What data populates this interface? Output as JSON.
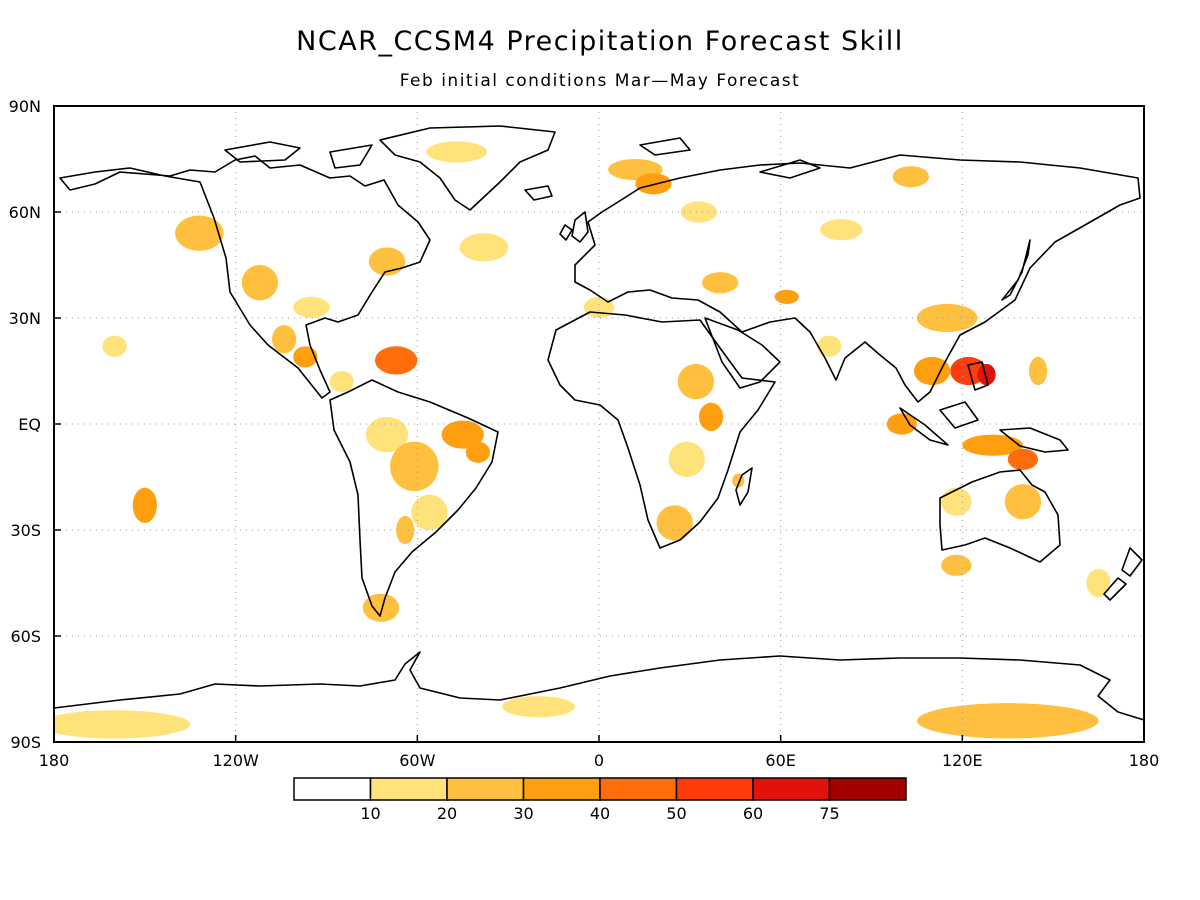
{
  "title": "NCAR_CCSM4 Precipitation Forecast Skill",
  "subtitle": "Feb initial conditions  Mar—May Forecast",
  "map": {
    "projection": "equirectangular",
    "lon_range": [
      -180,
      180
    ],
    "lat_range": [
      -90,
      90
    ],
    "grid": "dotted",
    "y_ticks": [
      {
        "value": 90,
        "label": "90N"
      },
      {
        "value": 60,
        "label": "60N"
      },
      {
        "value": 30,
        "label": "30N"
      },
      {
        "value": 0,
        "label": "EQ"
      },
      {
        "value": -30,
        "label": "30S"
      },
      {
        "value": -60,
        "label": "60S"
      },
      {
        "value": -90,
        "label": "90S"
      }
    ],
    "x_ticks": [
      {
        "value": -180,
        "label": "180"
      },
      {
        "value": -120,
        "label": "120W"
      },
      {
        "value": -60,
        "label": "60W"
      },
      {
        "value": 0,
        "label": "0"
      },
      {
        "value": 60,
        "label": "60E"
      },
      {
        "value": 120,
        "label": "120E"
      },
      {
        "value": 180,
        "label": "180"
      }
    ]
  },
  "colorbar": {
    "colors": [
      "#ffffff",
      "#ffe37a",
      "#ffc040",
      "#ff9f0f",
      "#ff6e0a",
      "#ff3c0a",
      "#e0120a",
      "#a30000"
    ],
    "labels": [
      "10",
      "20",
      "30",
      "40",
      "50",
      "60",
      "75"
    ]
  },
  "chart_data": {
    "type": "heatmap",
    "title": "NCAR_CCSM4 Precipitation Forecast Skill",
    "subtitle": "Feb initial conditions  Mar—May Forecast",
    "levels": [
      10,
      20,
      30,
      40,
      50,
      60,
      75
    ],
    "regions": [
      {
        "lon": -38,
        "lat": 50,
        "rx": 8,
        "ry": 4,
        "level": 1
      },
      {
        "lon": -47,
        "lat": 77,
        "rx": 10,
        "ry": 3,
        "level": 1
      },
      {
        "lon": -132,
        "lat": 54,
        "rx": 8,
        "ry": 5,
        "level": 2
      },
      {
        "lon": -112,
        "lat": 40,
        "rx": 6,
        "ry": 5,
        "level": 2
      },
      {
        "lon": -95,
        "lat": 33,
        "rx": 6,
        "ry": 3,
        "level": 1
      },
      {
        "lon": -104,
        "lat": 24,
        "rx": 4,
        "ry": 4,
        "level": 2
      },
      {
        "lon": -97,
        "lat": 19,
        "rx": 4,
        "ry": 3,
        "level": 3
      },
      {
        "lon": -85,
        "lat": 12,
        "rx": 4,
        "ry": 3,
        "level": 1
      },
      {
        "lon": -70,
        "lat": 46,
        "rx": 6,
        "ry": 4,
        "level": 2
      },
      {
        "lon": -67,
        "lat": 18,
        "rx": 7,
        "ry": 4,
        "level": 4
      },
      {
        "lon": -160,
        "lat": 22,
        "rx": 4,
        "ry": 3,
        "level": 1
      },
      {
        "lon": -150,
        "lat": -23,
        "rx": 4,
        "ry": 5,
        "level": 3
      },
      {
        "lon": -70,
        "lat": -3,
        "rx": 7,
        "ry": 5,
        "level": 1
      },
      {
        "lon": -61,
        "lat": -12,
        "rx": 8,
        "ry": 7,
        "level": 2
      },
      {
        "lon": -45,
        "lat": -3,
        "rx": 7,
        "ry": 4,
        "level": 3
      },
      {
        "lon": -40,
        "lat": -8,
        "rx": 4,
        "ry": 3,
        "level": 3
      },
      {
        "lon": -56,
        "lat": -25,
        "rx": 6,
        "ry": 5,
        "level": 1
      },
      {
        "lon": -64,
        "lat": -30,
        "rx": 3,
        "ry": 4,
        "level": 2
      },
      {
        "lon": -72,
        "lat": -52,
        "rx": 6,
        "ry": 4,
        "level": 2
      },
      {
        "lon": 12,
        "lat": 72,
        "rx": 9,
        "ry": 3,
        "level": 2
      },
      {
        "lon": 18,
        "lat": 68,
        "rx": 6,
        "ry": 3,
        "level": 3
      },
      {
        "lon": 33,
        "lat": 60,
        "rx": 6,
        "ry": 3,
        "level": 1
      },
      {
        "lon": 40,
        "lat": 40,
        "rx": 6,
        "ry": 3,
        "level": 2
      },
      {
        "lon": 62,
        "lat": 36,
        "rx": 4,
        "ry": 2,
        "level": 3
      },
      {
        "lon": 0,
        "lat": 33,
        "rx": 5,
        "ry": 3,
        "level": 1
      },
      {
        "lon": 32,
        "lat": 12,
        "rx": 6,
        "ry": 5,
        "level": 2
      },
      {
        "lon": 37,
        "lat": 2,
        "rx": 4,
        "ry": 4,
        "level": 3
      },
      {
        "lon": 29,
        "lat": -10,
        "rx": 6,
        "ry": 5,
        "level": 1
      },
      {
        "lon": 25,
        "lat": -28,
        "rx": 6,
        "ry": 5,
        "level": 2
      },
      {
        "lon": 46,
        "lat": -16,
        "rx": 2,
        "ry": 2,
        "level": 2
      },
      {
        "lon": 76,
        "lat": 22,
        "rx": 4,
        "ry": 3,
        "level": 1
      },
      {
        "lon": 80,
        "lat": 55,
        "rx": 7,
        "ry": 3,
        "level": 1
      },
      {
        "lon": 103,
        "lat": 70,
        "rx": 6,
        "ry": 3,
        "level": 2
      },
      {
        "lon": 122,
        "lat": 15,
        "rx": 6,
        "ry": 4,
        "level": 5
      },
      {
        "lon": 128,
        "lat": 14,
        "rx": 3,
        "ry": 3,
        "level": 6
      },
      {
        "lon": 110,
        "lat": 15,
        "rx": 6,
        "ry": 4,
        "level": 3
      },
      {
        "lon": 145,
        "lat": 15,
        "rx": 3,
        "ry": 4,
        "level": 2
      },
      {
        "lon": 115,
        "lat": 30,
        "rx": 10,
        "ry": 4,
        "level": 2
      },
      {
        "lon": 100,
        "lat": 0,
        "rx": 5,
        "ry": 3,
        "level": 3
      },
      {
        "lon": 130,
        "lat": -6,
        "rx": 10,
        "ry": 3,
        "level": 3
      },
      {
        "lon": 140,
        "lat": -10,
        "rx": 5,
        "ry": 3,
        "level": 4
      },
      {
        "lon": 118,
        "lat": -22,
        "rx": 5,
        "ry": 4,
        "level": 1
      },
      {
        "lon": 140,
        "lat": -22,
        "rx": 6,
        "ry": 5,
        "level": 2
      },
      {
        "lon": 118,
        "lat": -40,
        "rx": 5,
        "ry": 3,
        "level": 2
      },
      {
        "lon": 165,
        "lat": -45,
        "rx": 4,
        "ry": 4,
        "level": 1
      },
      {
        "lon": 135,
        "lat": -84,
        "rx": 30,
        "ry": 5,
        "level": 2
      },
      {
        "lon": -160,
        "lat": -85,
        "rx": 25,
        "ry": 4,
        "level": 1
      },
      {
        "lon": -20,
        "lat": -80,
        "rx": 12,
        "ry": 3,
        "level": 1
      }
    ]
  }
}
